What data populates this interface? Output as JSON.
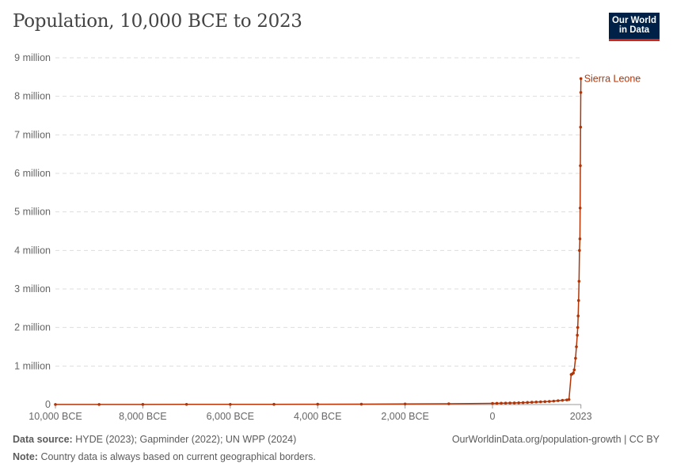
{
  "title": "Population, 10,000 BCE to 2023",
  "logo": {
    "line1": "Our World",
    "line2": "in Data"
  },
  "footer": {
    "source_label": "Data source:",
    "source_text": "HYDE (2023); Gapminder (2022); UN WPP (2024)",
    "url": "OurWorldinData.org/population-growth | CC BY",
    "note_label": "Note:",
    "note_text": "Country data is always based on current geographical borders."
  },
  "chart_data": {
    "type": "line",
    "title": "Population, 10,000 BCE to 2023",
    "xlim": [
      -10000,
      2023
    ],
    "ylim": [
      0,
      9000000
    ],
    "grid": true,
    "color": "#b13507",
    "x_ticks": [
      {
        "value": -10000,
        "label": "10,000 BCE"
      },
      {
        "value": -8000,
        "label": "8,000 BCE"
      },
      {
        "value": -6000,
        "label": "6,000 BCE"
      },
      {
        "value": -4000,
        "label": "4,000 BCE"
      },
      {
        "value": -2000,
        "label": "2,000 BCE"
      },
      {
        "value": 0,
        "label": "0"
      },
      {
        "value": 2023,
        "label": "2023"
      }
    ],
    "y_ticks": [
      {
        "value": 0,
        "label": "0"
      },
      {
        "value": 1000000,
        "label": "1 million"
      },
      {
        "value": 2000000,
        "label": "2 million"
      },
      {
        "value": 3000000,
        "label": "3 million"
      },
      {
        "value": 4000000,
        "label": "4 million"
      },
      {
        "value": 5000000,
        "label": "5 million"
      },
      {
        "value": 6000000,
        "label": "6 million"
      },
      {
        "value": 7000000,
        "label": "7 million"
      },
      {
        "value": 8000000,
        "label": "8 million"
      },
      {
        "value": 9000000,
        "label": "9 million"
      }
    ],
    "series": [
      {
        "name": "Sierra Leone",
        "x": [
          -10000,
          -9000,
          -8000,
          -7000,
          -6000,
          -5000,
          -4000,
          -3000,
          -2000,
          -1000,
          0,
          100,
          200,
          300,
          400,
          500,
          600,
          700,
          800,
          900,
          1000,
          1100,
          1200,
          1300,
          1400,
          1500,
          1600,
          1700,
          1750,
          1800,
          1820,
          1850,
          1870,
          1900,
          1920,
          1940,
          1950,
          1960,
          1970,
          1980,
          1990,
          2000,
          2005,
          2010,
          2015,
          2020,
          2023
        ],
        "y": [
          2000,
          2500,
          3000,
          4000,
          5000,
          6000,
          8000,
          10000,
          15000,
          20000,
          30000,
          32000,
          35000,
          37000,
          40000,
          42000,
          45000,
          50000,
          55000,
          60000,
          65000,
          70000,
          75000,
          80000,
          90000,
          100000,
          110000,
          120000,
          130000,
          780000,
          790000,
          820000,
          900000,
          1200000,
          1500000,
          1800000,
          2000000,
          2300000,
          2700000,
          3200000,
          4000000,
          4300000,
          5100000,
          6200000,
          7200000,
          8100000,
          8460000
        ]
      }
    ]
  }
}
